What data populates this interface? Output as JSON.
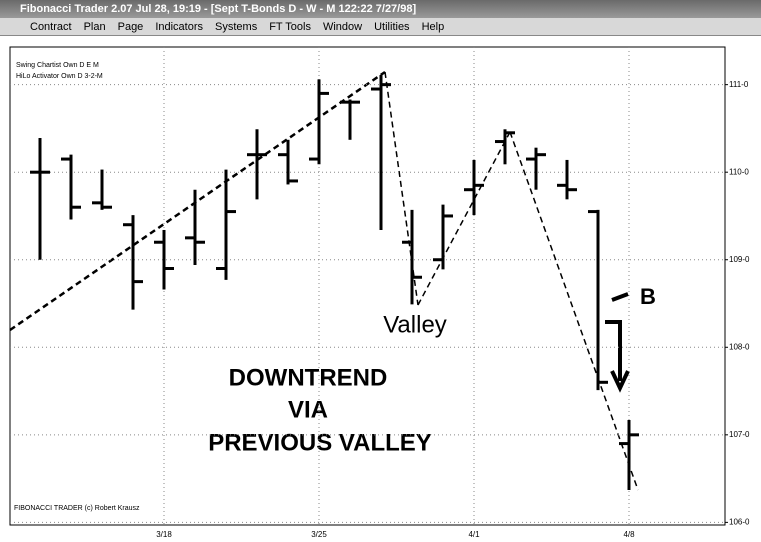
{
  "window": {
    "title": "Fibonacci Trader 2.07 Jul 28, 19:19 - [Sept T-Bonds D - W - M  122:22 7/27/98]",
    "menu": [
      "Contract",
      "Plan",
      "Page",
      "Indicators",
      "Systems",
      "FT Tools",
      "Window",
      "Utilities",
      "Help"
    ]
  },
  "chart_data": {
    "type": "ohlc",
    "color": "#000000",
    "categories": [
      null,
      null,
      null,
      null,
      "3/18",
      null,
      null,
      null,
      null,
      "3/25",
      null,
      null,
      null,
      null,
      "4/1",
      null,
      null,
      null,
      null,
      "4/8"
    ],
    "open": [
      110.0,
      110.15,
      109.65,
      109.4,
      109.2,
      109.25,
      108.9,
      110.2,
      110.2,
      110.15,
      110.8,
      110.95,
      109.2,
      109.0,
      109.8,
      110.35,
      110.15,
      109.85,
      109.55,
      106.9
    ],
    "high": [
      110.39,
      110.2,
      110.03,
      109.51,
      109.34,
      109.8,
      110.03,
      110.49,
      110.37,
      111.06,
      110.83,
      111.11,
      109.57,
      109.63,
      110.14,
      110.49,
      110.28,
      110.14,
      109.57,
      107.17
    ],
    "low": [
      109.0,
      109.46,
      109.57,
      108.43,
      108.66,
      108.94,
      108.77,
      109.69,
      109.86,
      110.09,
      110.37,
      109.34,
      108.49,
      108.89,
      109.51,
      110.09,
      109.8,
      109.69,
      107.51,
      106.37
    ],
    "close": [
      110.0,
      109.6,
      109.6,
      108.75,
      108.9,
      109.2,
      109.55,
      110.2,
      109.9,
      110.9,
      110.8,
      111.0,
      108.8,
      109.5,
      109.85,
      110.45,
      110.2,
      109.8,
      107.6,
      107.0
    ],
    "ylim": [
      105.97,
      111.43
    ],
    "yticks": [
      {
        "value": 106,
        "label": "106-0"
      },
      {
        "value": 107,
        "label": "107-0"
      },
      {
        "value": 108,
        "label": "108-0"
      },
      {
        "value": 109,
        "label": "109-0"
      },
      {
        "value": 110,
        "label": "110-0"
      },
      {
        "value": 111,
        "label": "111-0"
      }
    ],
    "grid": true,
    "legend": [
      "Swing Chartist Own D E M",
      "HiLo Activator Own D 3-2-M"
    ],
    "annotations": {
      "valley": "Valley",
      "b": "B",
      "line1": "DOWNTREND",
      "line2": "VIA",
      "line3": "PREVIOUS VALLEY"
    },
    "footer": "FIBONACCI TRADER (c) Robert Krausz"
  }
}
